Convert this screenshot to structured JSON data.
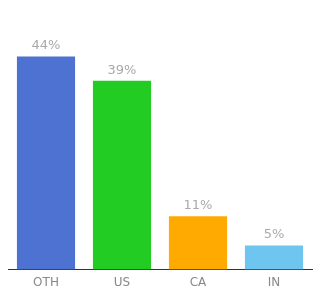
{
  "chart_data": {
    "type": "bar",
    "categories": [
      "OTH",
      "US",
      "CA",
      "IN"
    ],
    "values": [
      44,
      39,
      11,
      5
    ],
    "value_labels": [
      "44%",
      "39%",
      "11%",
      "5%"
    ],
    "colors": [
      "#4d72d1",
      "#22cc22",
      "#ffaa00",
      "#6ec6f0"
    ],
    "ylim": [
      0,
      54
    ],
    "grid": false,
    "data_labels": true,
    "tick_labels": "x"
  }
}
